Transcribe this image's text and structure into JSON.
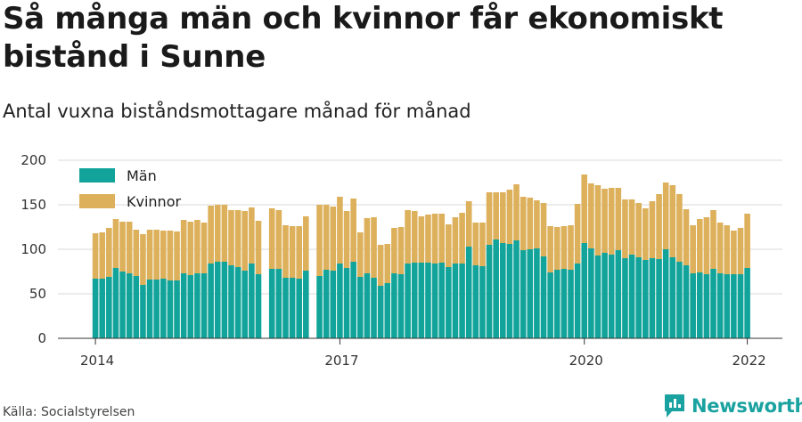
{
  "title": "Så många män och kvinnor får ekonomiskt bistånd i Sunne",
  "subtitle": "Antal vuxna biståndsmottagare månad för månad",
  "source": "Källa: Socialstyrelsen",
  "brand": {
    "name": "Newsworthy",
    "logo_icon": "newsworthy-logo-icon"
  },
  "colors": {
    "men": "#12a49a",
    "women": "#ddb05c",
    "grid": "#d9d9d9",
    "axis": "#333333"
  },
  "chart_data": {
    "type": "bar",
    "stacked": true,
    "legend": {
      "position": "top-left",
      "entries": [
        "Män",
        "Kvinnor"
      ]
    },
    "x_ticks": [
      "2014",
      "2017",
      "2020",
      "2022"
    ],
    "y_ticks": [
      "0",
      "50",
      "100",
      "150",
      "200"
    ],
    "ylim": [
      0,
      200
    ],
    "grid": true,
    "series": [
      {
        "name": "Män",
        "values": [
          67,
          67,
          69,
          79,
          75,
          73,
          70,
          60,
          66,
          66,
          67,
          65,
          65,
          73,
          71,
          73,
          73,
          84,
          86,
          86,
          82,
          80,
          76,
          84,
          72,
          null,
          78,
          78,
          68,
          68,
          67,
          76,
          null,
          70,
          77,
          76,
          84,
          79,
          86,
          69,
          73,
          68,
          59,
          62,
          73,
          72,
          84,
          85,
          85,
          85,
          84,
          85,
          80,
          84,
          84,
          103,
          82,
          81,
          105,
          111,
          107,
          106,
          110,
          99,
          100,
          101,
          92,
          74,
          77,
          78,
          77,
          84,
          107,
          101,
          93,
          96,
          94,
          99,
          90,
          94,
          91,
          88,
          90,
          89,
          100,
          91,
          86,
          82,
          73,
          74,
          72,
          78,
          73,
          72,
          72,
          72,
          79
        ]
      },
      {
        "name": "Kvinnor",
        "values": [
          51,
          52,
          55,
          55,
          56,
          58,
          52,
          57,
          56,
          56,
          54,
          56,
          55,
          60,
          60,
          60,
          57,
          65,
          64,
          64,
          62,
          64,
          67,
          63,
          60,
          null,
          68,
          66,
          59,
          58,
          59,
          61,
          null,
          80,
          73,
          72,
          75,
          64,
          71,
          50,
          62,
          68,
          46,
          44,
          51,
          53,
          60,
          58,
          52,
          54,
          56,
          55,
          48,
          52,
          57,
          51,
          48,
          49,
          59,
          53,
          57,
          61,
          63,
          60,
          58,
          54,
          60,
          52,
          48,
          48,
          50,
          67,
          77,
          73,
          79,
          72,
          75,
          70,
          66,
          62,
          61,
          58,
          64,
          73,
          75,
          81,
          76,
          63,
          54,
          60,
          64,
          66,
          57,
          55,
          49,
          52,
          61
        ]
      }
    ]
  }
}
